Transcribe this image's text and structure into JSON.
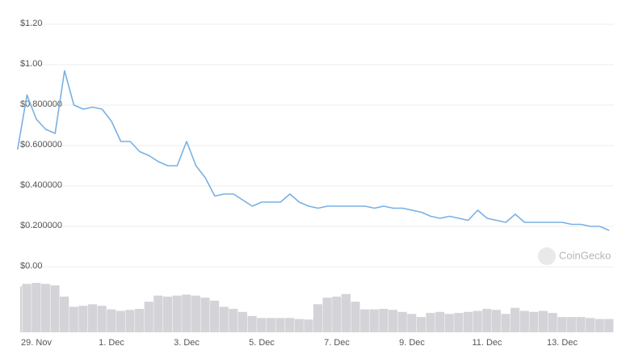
{
  "chart_data": [
    {
      "type": "line",
      "color": "#78b0e4",
      "ylim": [
        0,
        1.2
      ],
      "yticks": [
        {
          "value": 0,
          "label": "$0.00"
        },
        {
          "value": 0.2,
          "label": "$0.200000"
        },
        {
          "value": 0.4,
          "label": "$0.400000"
        },
        {
          "value": 0.6,
          "label": "$0.600000"
        },
        {
          "value": 0.8,
          "label": "$0.800000"
        },
        {
          "value": 1,
          "label": "$1.00"
        },
        {
          "value": 1.2,
          "label": "$1.20"
        }
      ],
      "grid": true,
      "watermark": "CoinGecko",
      "categories": [
        null,
        null,
        "29. Nov",
        null,
        null,
        null,
        null,
        null,
        null,
        null,
        "1. Dec",
        null,
        null,
        null,
        null,
        null,
        null,
        null,
        "3. Dec",
        null,
        null,
        null,
        null,
        null,
        null,
        null,
        "5. Dec",
        null,
        null,
        null,
        null,
        null,
        null,
        null,
        "7. Dec",
        null,
        null,
        null,
        null,
        null,
        null,
        null,
        "9. Dec",
        null,
        null,
        null,
        null,
        null,
        null,
        null,
        "11. Dec",
        null,
        null,
        null,
        null,
        null,
        null,
        null,
        "13. Dec",
        null,
        null,
        null,
        null,
        null
      ],
      "values": [
        0.58,
        0.85,
        0.73,
        0.68,
        0.66,
        0.97,
        0.8,
        0.78,
        0.79,
        0.78,
        0.72,
        0.62,
        0.62,
        0.57,
        0.55,
        0.52,
        0.5,
        0.5,
        0.62,
        0.5,
        0.44,
        0.35,
        0.36,
        0.36,
        0.33,
        0.3,
        0.32,
        0.32,
        0.32,
        0.36,
        0.32,
        0.3,
        0.29,
        0.3,
        0.3,
        0.3,
        0.3,
        0.3,
        0.29,
        0.3,
        0.29,
        0.29,
        0.28,
        0.27,
        0.25,
        0.24,
        0.25,
        0.24,
        0.23,
        0.28,
        0.24,
        0.23,
        0.22,
        0.26,
        0.22,
        0.22,
        0.22,
        0.22,
        0.22,
        0.21,
        0.21,
        0.2,
        0.2,
        0.18
      ]
    },
    {
      "type": "bar",
      "color": "#d3d3d8",
      "ylim": [
        0,
        100
      ],
      "values": [
        90,
        95,
        97,
        95,
        92,
        70,
        50,
        52,
        55,
        52,
        45,
        42,
        44,
        46,
        60,
        72,
        70,
        72,
        74,
        72,
        68,
        62,
        50,
        46,
        40,
        32,
        28,
        28,
        28,
        28,
        26,
        25,
        55,
        68,
        70,
        75,
        60,
        45,
        45,
        46,
        44,
        40,
        36,
        30,
        38,
        40,
        36,
        38,
        40,
        42,
        46,
        44,
        36,
        48,
        42,
        40,
        42,
        38,
        30,
        30,
        30,
        28,
        26,
        26
      ]
    }
  ]
}
